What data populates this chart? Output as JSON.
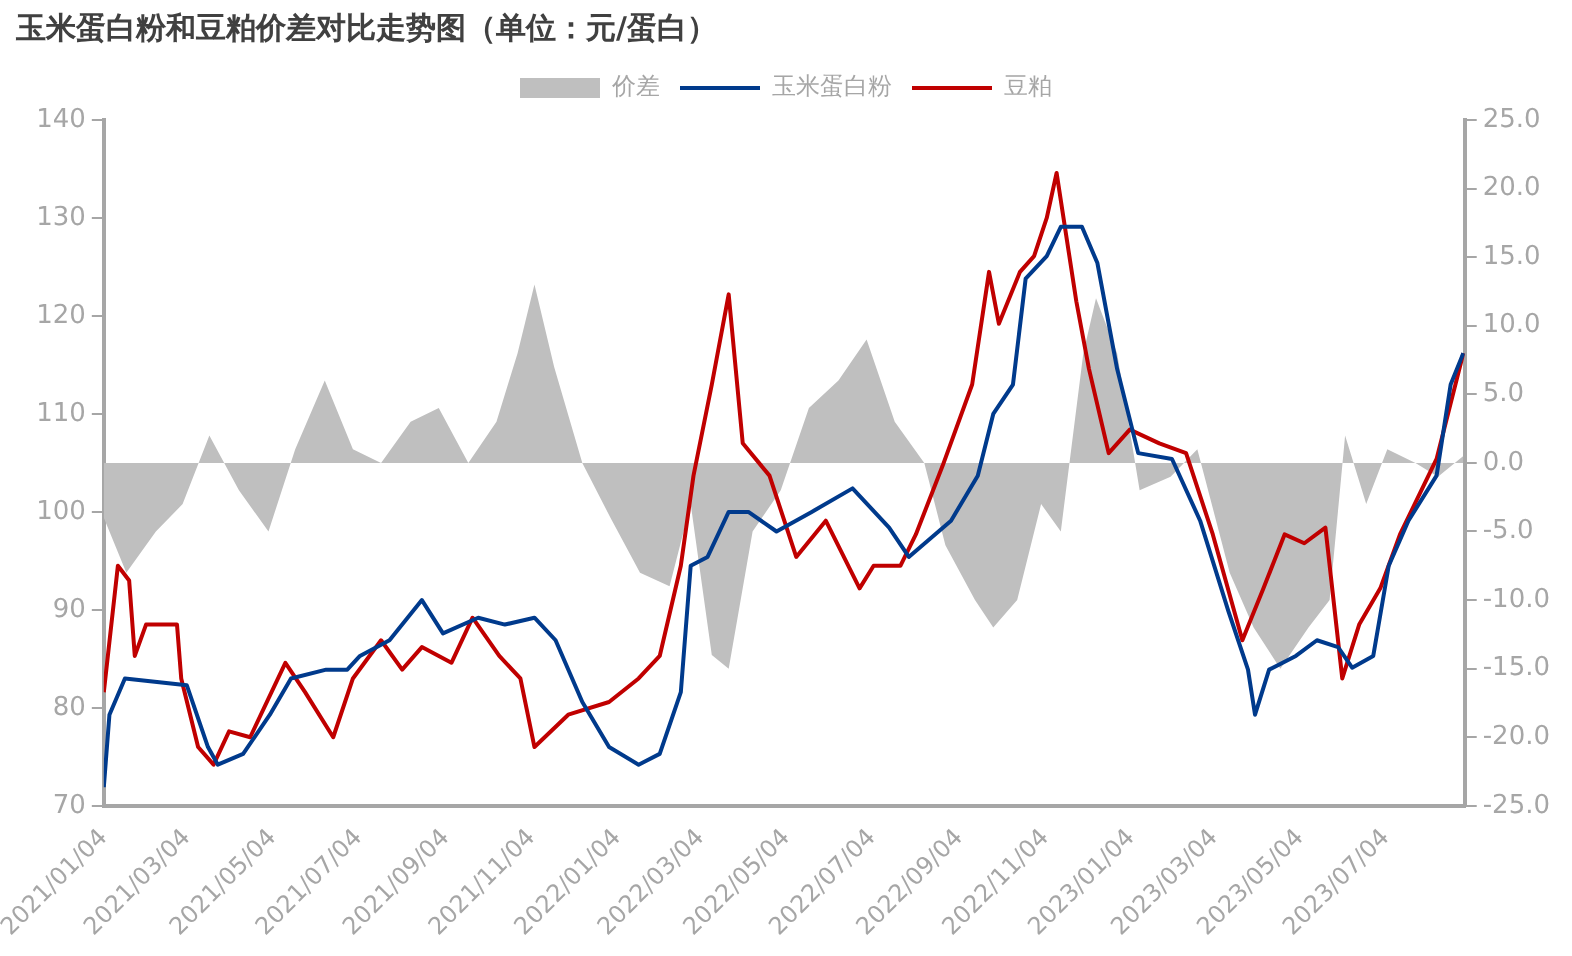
{
  "chart_data": {
    "type": "line",
    "title": "玉米蛋白粉和豆粕价差对比走势图（单位：元/蛋白）",
    "legend": "top",
    "grid": false,
    "xlim": [
      "2021-01-04",
      "2023-08-29"
    ],
    "xticks": [
      {
        "value": "2021-01-04",
        "label": "2021/01/04"
      },
      {
        "value": "2021-03-04",
        "label": "2021/03/04"
      },
      {
        "value": "2021-05-04",
        "label": "2021/05/04"
      },
      {
        "value": "2021-07-04",
        "label": "2021/07/04"
      },
      {
        "value": "2021-09-04",
        "label": "2021/09/04"
      },
      {
        "value": "2021-11-04",
        "label": "2021/11/04"
      },
      {
        "value": "2022-01-04",
        "label": "2022/01/04"
      },
      {
        "value": "2022-03-04",
        "label": "2022/03/04"
      },
      {
        "value": "2022-05-04",
        "label": "2022/05/04"
      },
      {
        "value": "2022-07-04",
        "label": "2022/07/04"
      },
      {
        "value": "2022-09-04",
        "label": "2022/09/04"
      },
      {
        "value": "2022-11-04",
        "label": "2022/11/04"
      },
      {
        "value": "2023-01-04",
        "label": "2023/01/04"
      },
      {
        "value": "2023-03-04",
        "label": "2023/03/04"
      },
      {
        "value": "2023-05-04",
        "label": "2023/05/04"
      },
      {
        "value": "2023-07-04",
        "label": "2023/07/04"
      }
    ],
    "ylim": [
      70,
      140
    ],
    "yticks": [
      70,
      80,
      90,
      100,
      110,
      120,
      130,
      140
    ],
    "y2lim": [
      -25,
      25
    ],
    "y2ticks": [
      {
        "value": -25,
        "label": "-25.0"
      },
      {
        "value": -20,
        "label": "-20.0"
      },
      {
        "value": -15,
        "label": "-15.0"
      },
      {
        "value": -10,
        "label": "-10.0"
      },
      {
        "value": -5,
        "label": "-5.0"
      },
      {
        "value": 0,
        "label": "0.0"
      },
      {
        "value": 5,
        "label": "5.0"
      },
      {
        "value": 10,
        "label": "10.0"
      },
      {
        "value": 15,
        "label": "15.0"
      },
      {
        "value": 20,
        "label": "20.0"
      },
      {
        "value": 25,
        "label": "25.0"
      }
    ],
    "series": [
      {
        "name": "价差",
        "type": "area",
        "axis": "y2",
        "color": "#bfbfbf",
        "x": [
          "2021-01-04",
          "2021-01-20",
          "2021-02-10",
          "2021-03-01",
          "2021-03-20",
          "2021-04-10",
          "2021-05-01",
          "2021-05-20",
          "2021-06-10",
          "2021-06-30",
          "2021-07-20",
          "2021-08-10",
          "2021-08-30",
          "2021-09-20",
          "2021-10-10",
          "2021-10-25",
          "2021-11-06",
          "2021-11-20",
          "2021-12-10",
          "2021-12-30",
          "2022-01-20",
          "2022-02-10",
          "2022-02-25",
          "2022-03-12",
          "2022-03-24",
          "2022-04-10",
          "2022-04-30",
          "2022-05-20",
          "2022-06-10",
          "2022-06-30",
          "2022-07-20",
          "2022-08-10",
          "2022-08-25",
          "2022-09-15",
          "2022-09-28",
          "2022-10-15",
          "2022-11-01",
          "2022-11-15",
          "2022-12-01",
          "2022-12-10",
          "2022-12-25",
          "2023-01-10",
          "2023-02-01",
          "2023-02-20",
          "2023-03-15",
          "2023-04-01",
          "2023-04-20",
          "2023-05-10",
          "2023-05-25",
          "2023-06-05",
          "2023-06-20",
          "2023-07-05",
          "2023-07-25",
          "2023-08-10",
          "2023-08-28"
        ],
        "values": [
          -4,
          -8,
          -5,
          -3,
          2,
          -2,
          -5,
          1,
          6,
          1,
          0,
          3,
          4,
          0,
          3,
          8,
          13,
          7,
          0,
          -4,
          -8,
          -9,
          -3,
          -14,
          -15,
          -5,
          -2,
          4,
          6,
          9,
          3,
          0,
          -6,
          -10,
          -12,
          -10,
          -3,
          -5,
          8,
          12,
          8,
          -2,
          -1,
          1,
          -8,
          -12,
          -15,
          -12,
          -10,
          2,
          -3,
          1,
          0,
          -1,
          0.5
        ]
      },
      {
        "name": "玉米蛋白粉",
        "color": "#003a8c",
        "x": [
          "2021-01-04",
          "2021-01-08",
          "2021-01-19",
          "2021-03-04",
          "2021-03-19",
          "2021-03-26",
          "2021-04-13",
          "2021-05-02",
          "2021-05-17",
          "2021-06-11",
          "2021-06-26",
          "2021-07-05",
          "2021-07-26",
          "2021-08-18",
          "2021-09-02",
          "2021-09-27",
          "2021-10-16",
          "2021-11-06",
          "2021-11-21",
          "2021-12-10",
          "2021-12-29",
          "2022-01-19",
          "2022-02-03",
          "2022-02-18",
          "2022-02-25",
          "2022-03-09",
          "2022-03-24",
          "2022-04-07",
          "2022-04-27",
          "2022-05-22",
          "2022-06-20",
          "2022-07-16",
          "2022-07-30",
          "2022-08-29",
          "2022-09-17",
          "2022-09-28",
          "2022-10-12",
          "2022-10-21",
          "2022-11-05",
          "2022-11-15",
          "2022-11-30",
          "2022-12-11",
          "2022-12-25",
          "2023-01-09",
          "2023-02-02",
          "2023-02-22",
          "2023-03-14",
          "2023-03-28",
          "2023-04-02",
          "2023-04-12",
          "2023-05-01",
          "2023-05-16",
          "2023-05-31",
          "2023-06-10",
          "2023-06-25",
          "2023-07-06",
          "2023-07-20",
          "2023-08-09",
          "2023-08-19",
          "2023-08-28"
        ],
        "values": [
          71.9,
          79.3,
          83,
          82.3,
          76,
          74.2,
          75.3,
          79.3,
          83,
          83.9,
          83.9,
          85.3,
          86.9,
          91,
          87.6,
          89.2,
          88.5,
          89.2,
          86.9,
          80.6,
          76,
          74.2,
          75.3,
          81.6,
          94.5,
          95.4,
          100,
          100,
          98,
          100,
          102.4,
          98.4,
          95.4,
          99.1,
          103.7,
          110,
          113,
          123.8,
          126.1,
          129.1,
          129.1,
          125.4,
          114.6,
          106,
          105.4,
          99.1,
          89.9,
          83.9,
          79.3,
          83.9,
          85.3,
          86.9,
          86.2,
          84.1,
          85.3,
          94.5,
          99.1,
          103.7,
          113,
          116.2
        ]
      },
      {
        "name": "豆粕",
        "color": "#c00000",
        "x": [
          "2021-01-04",
          "2021-01-14",
          "2021-01-22",
          "2021-01-26",
          "2021-02-03",
          "2021-02-25",
          "2021-02-28",
          "2021-03-12",
          "2021-03-23",
          "2021-04-03",
          "2021-04-18",
          "2021-05-13",
          "2021-05-27",
          "2021-06-16",
          "2021-06-30",
          "2021-07-20",
          "2021-08-04",
          "2021-08-18",
          "2021-09-08",
          "2021-09-23",
          "2021-10-12",
          "2021-10-27",
          "2021-11-06",
          "2021-11-30",
          "2021-12-29",
          "2022-01-19",
          "2022-02-03",
          "2022-02-18",
          "2022-02-27",
          "2022-03-12",
          "2022-03-24",
          "2022-04-03",
          "2022-04-22",
          "2022-05-11",
          "2022-06-01",
          "2022-06-25",
          "2022-07-05",
          "2022-07-24",
          "2022-08-04",
          "2022-08-23",
          "2022-09-13",
          "2022-09-25",
          "2022-10-02",
          "2022-10-17",
          "2022-10-27",
          "2022-11-05",
          "2022-11-12",
          "2022-11-26",
          "2022-12-05",
          "2022-12-19",
          "2023-01-03",
          "2023-01-24",
          "2023-02-12",
          "2023-03-03",
          "2023-03-24",
          "2023-04-08",
          "2023-04-23",
          "2023-05-07",
          "2023-05-22",
          "2023-06-03",
          "2023-06-15",
          "2023-06-30",
          "2023-07-14",
          "2023-08-09",
          "2023-08-28"
        ],
        "values": [
          81.6,
          94.5,
          93,
          85.3,
          88.5,
          88.5,
          83,
          76,
          74.2,
          77.6,
          77,
          84.6,
          81.6,
          77,
          83,
          86.9,
          83.9,
          86.2,
          84.6,
          89.2,
          85.3,
          83,
          76,
          79.3,
          80.6,
          83,
          85.3,
          94.5,
          103.7,
          113,
          122.2,
          107,
          103.7,
          95.4,
          99.1,
          92.2,
          94.5,
          94.5,
          97.7,
          104.7,
          113,
          124.5,
          119.2,
          124.5,
          126.1,
          130,
          134.6,
          121.5,
          114.6,
          106,
          108.4,
          107,
          106,
          97.7,
          86.9,
          92.2,
          97.7,
          96.8,
          98.4,
          83,
          88.5,
          92.2,
          97.7,
          105.4,
          116.2
        ]
      }
    ]
  }
}
